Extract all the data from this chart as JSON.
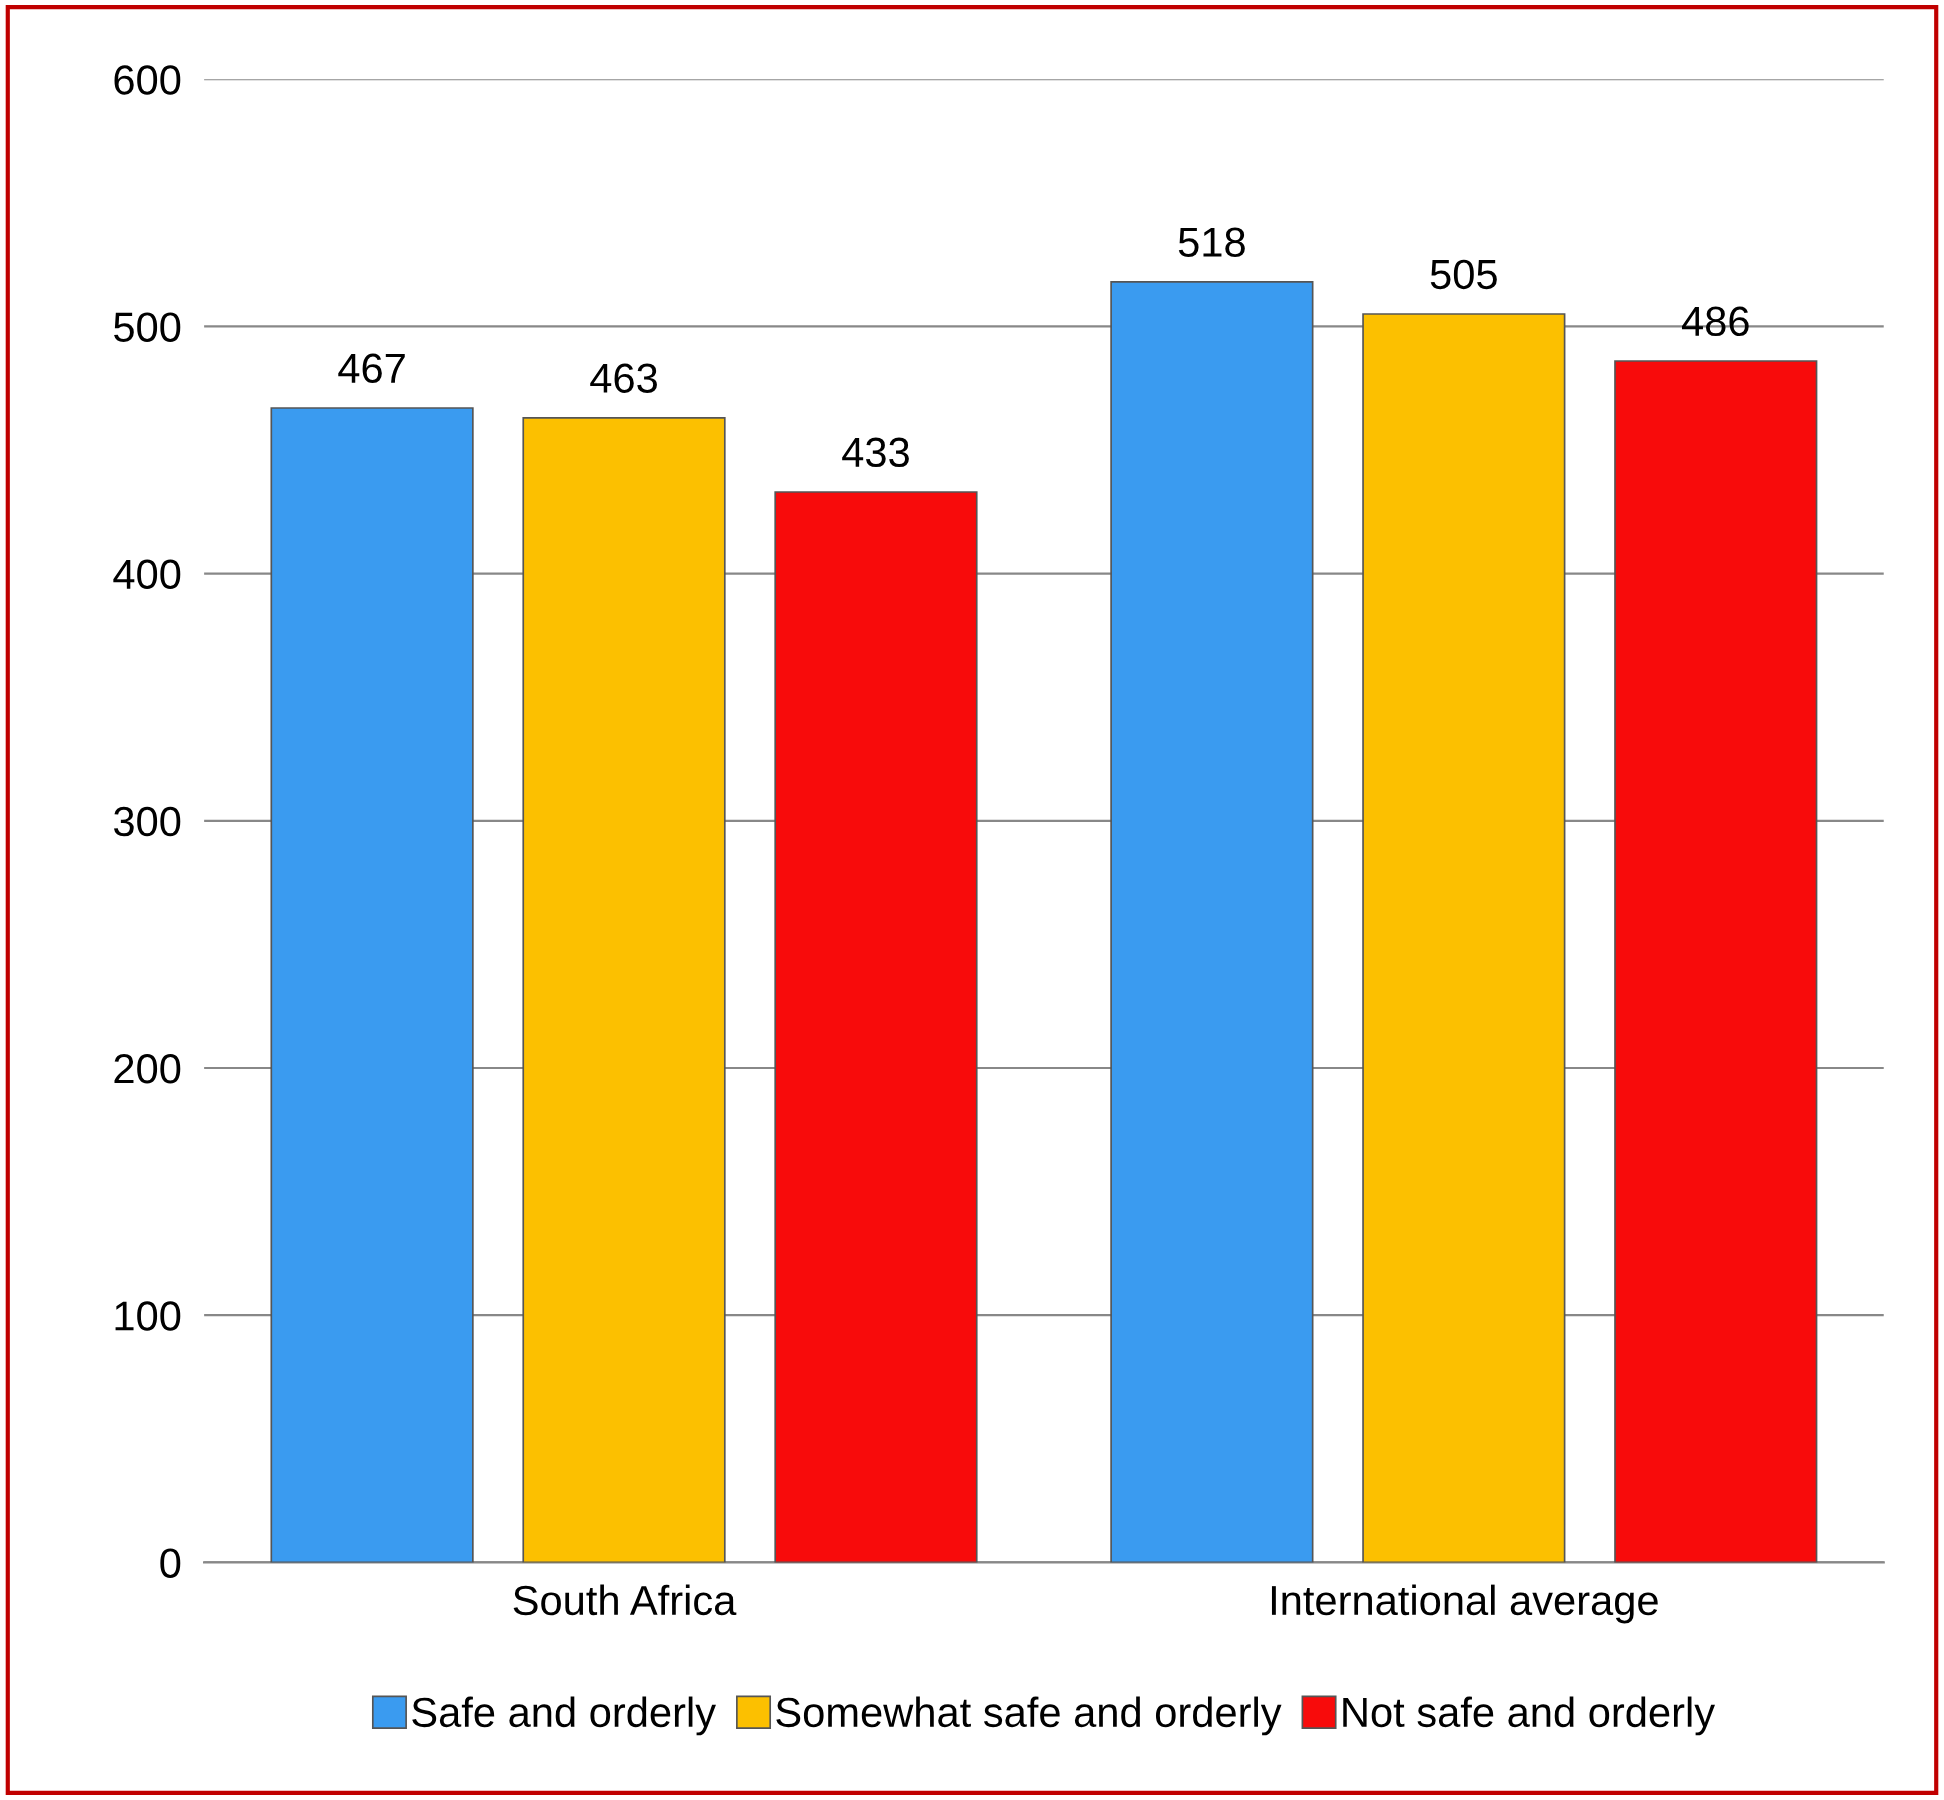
{
  "chart_data": {
    "type": "bar",
    "categories": [
      "South Africa",
      "International average"
    ],
    "series": [
      {
        "name": "Safe and orderly",
        "color": "#3a9bf0",
        "values": [
          467,
          518
        ]
      },
      {
        "name": "Somewhat safe and orderly",
        "color": "#fcc000",
        "values": [
          463,
          505
        ]
      },
      {
        "name": "Not safe and orderly",
        "color": "#f80b0b",
        "values": [
          433,
          486
        ]
      }
    ],
    "ylim": [
      0,
      600
    ],
    "yticks": [
      0,
      100,
      200,
      300,
      400,
      500,
      600
    ],
    "grid": "y",
    "legend": "bottom",
    "data_labels": true
  }
}
